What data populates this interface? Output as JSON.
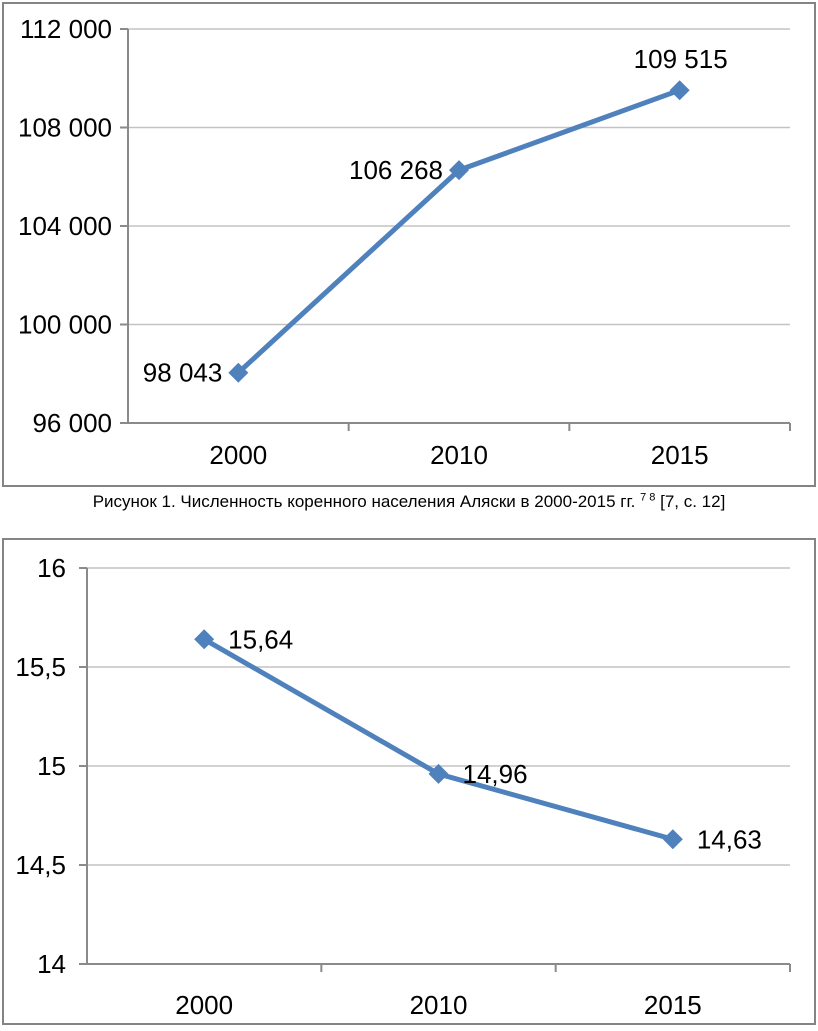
{
  "figure": {
    "caption_prefix": "Рисунок 1. Численность коренного населения Аляски в 2000-2015 гг.",
    "caption_sup": "7 8",
    "caption_suffix": "[7, с. 12]"
  },
  "colors": {
    "line": "#4F81BD",
    "marker": "#4F81BD",
    "grid": "#C3C3C3",
    "axis": "#8A8A8A",
    "text": "#000000",
    "frame_border": "#848484"
  },
  "chart_data": [
    {
      "type": "line",
      "title": "",
      "categories": [
        "2000",
        "2010",
        "2015"
      ],
      "values": [
        98043,
        106268,
        109515
      ],
      "point_labels": [
        "98 043",
        "106 268",
        "109 515"
      ],
      "ylim": [
        96000,
        112000
      ],
      "ytick_values": [
        96000,
        100000,
        104000,
        108000,
        112000
      ],
      "ytick_labels": [
        "96 000",
        "100 000",
        "104 000",
        "108 000",
        "112 000"
      ],
      "xlabel": "",
      "ylabel": "",
      "grid": true,
      "legend_position": "none",
      "marker": "diamond",
      "label_placements": [
        "left",
        "left",
        "above"
      ]
    },
    {
      "type": "line",
      "title": "",
      "categories": [
        "2000",
        "2010",
        "2015"
      ],
      "values": [
        15.64,
        14.96,
        14.63
      ],
      "point_labels": [
        "15,64",
        "14,96",
        "14,63"
      ],
      "ylim": [
        14,
        16
      ],
      "ytick_values": [
        14,
        14.5,
        15,
        15.5,
        16
      ],
      "ytick_labels": [
        "14",
        "14,5",
        "15",
        "15,5",
        "16"
      ],
      "xlabel": "",
      "ylabel": "",
      "grid": true,
      "legend_position": "none",
      "marker": "diamond",
      "label_placements": [
        "right",
        "right",
        "right"
      ]
    }
  ]
}
